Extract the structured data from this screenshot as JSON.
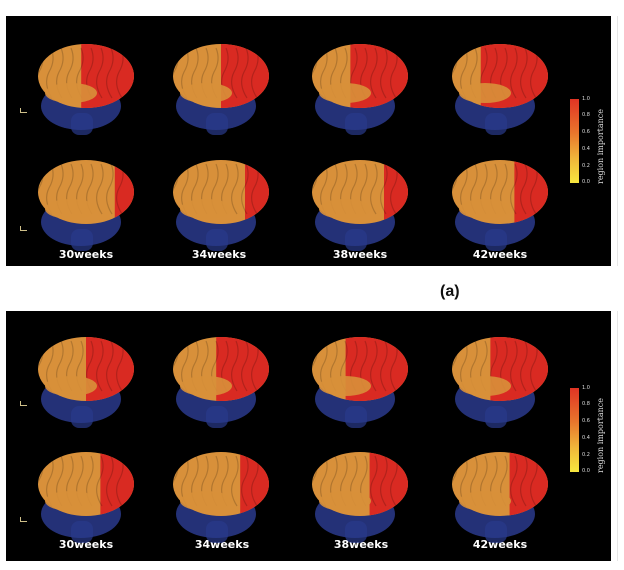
{
  "figure": {
    "panel_a_label": "(a)",
    "colorbar": {
      "title": "region importance",
      "ticks": [
        "1.0",
        "0.8",
        "0.6",
        "0.4",
        "0.2",
        "0.0"
      ]
    },
    "weeks": [
      "30weeks",
      "34weeks",
      "38weeks",
      "42weeks"
    ],
    "icons": [
      "brain-render-icon",
      "orientation-axis-icon",
      "colorbar-icon"
    ],
    "colors": {
      "panel_background": "#000000",
      "cerebellum_blue": "#2a3a8c",
      "importance_high": "#d92a22",
      "importance_mid": "#d8903a",
      "importance_low": "#f7e73e"
    }
  }
}
